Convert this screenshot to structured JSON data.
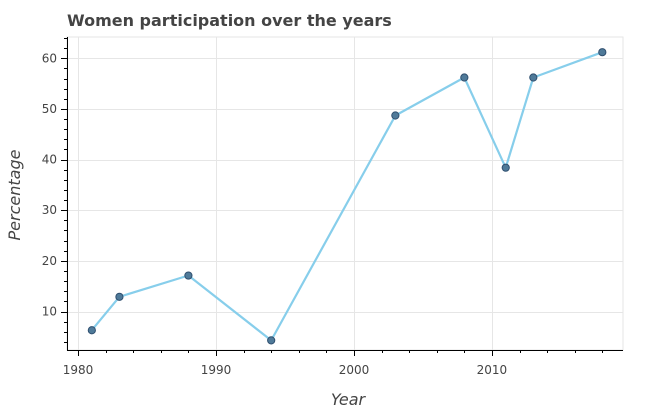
{
  "chart_data": {
    "type": "line",
    "title": "Women participation over the years",
    "xlabel": "Year",
    "ylabel": "Percentage",
    "xlim": [
      1979.2,
      2019.5
    ],
    "ylim": [
      2.4,
      64.2
    ],
    "xticks": [
      1980,
      1990,
      2000,
      2010
    ],
    "yticks": [
      10,
      20,
      30,
      40,
      50,
      60
    ],
    "grid": true,
    "colors": {
      "line": "#87ceeb",
      "marker_fill": "#4f7a99",
      "marker_stroke": "#2f4f6f",
      "grid": "#e6e6e6",
      "axis": "#000000"
    },
    "series": [
      {
        "name": "Women participation",
        "x": [
          1981,
          1983,
          1988,
          1994,
          2003,
          2008,
          2011,
          2013,
          2018
        ],
        "y": [
          6.3,
          12.9,
          17.1,
          4.3,
          48.7,
          56.2,
          38.4,
          56.2,
          61.2
        ]
      }
    ]
  }
}
